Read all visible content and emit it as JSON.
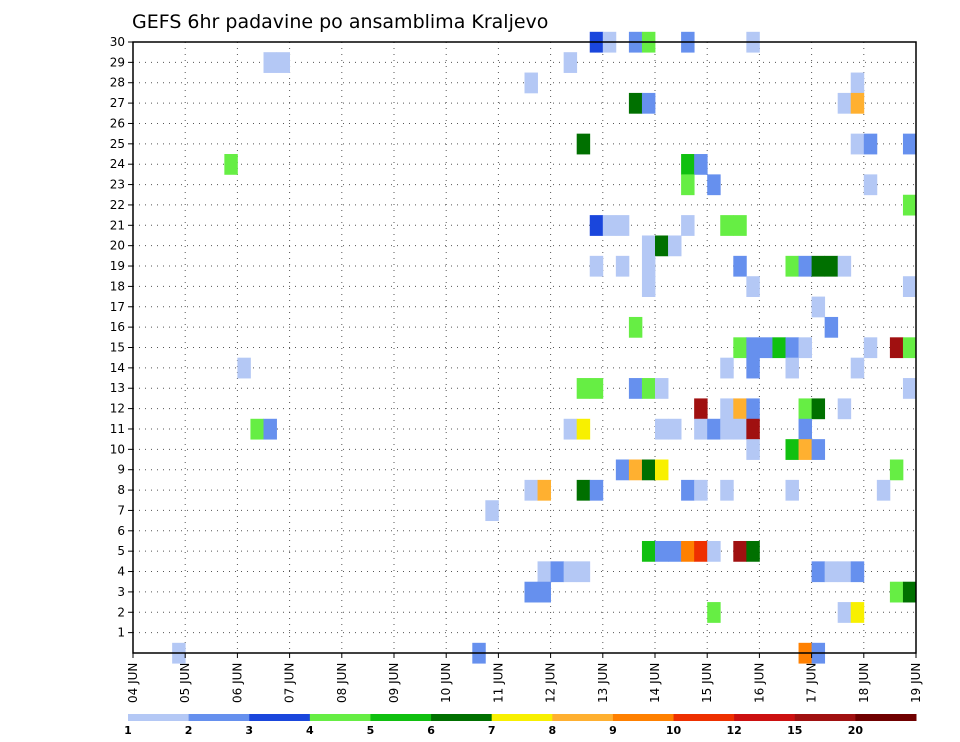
{
  "chart_data": {
    "type": "heatmap",
    "title": "GEFS 6hr padavine po ansamblima Kraljevo",
    "xlabel": "",
    "ylabel": "",
    "x_axis": {
      "kind": "date",
      "ticks": [
        "04 JUN",
        "05 JUN",
        "06 JUN",
        "07 JUN",
        "08 JUN",
        "09 JUN",
        "10 JUN",
        "11 JUN",
        "12 JUN",
        "13 JUN",
        "14 JUN",
        "15 JUN",
        "16 JUN",
        "17 JUN",
        "18 JUN",
        "19 JUN"
      ],
      "range": [
        "04 JUN",
        "19 JUN"
      ],
      "step_hours": 6
    },
    "y_axis": {
      "label": "",
      "ticks": [
        1,
        2,
        3,
        4,
        5,
        6,
        7,
        8,
        9,
        10,
        11,
        12,
        13,
        14,
        15,
        16,
        17,
        18,
        19,
        20,
        21,
        22,
        23,
        24,
        25,
        26,
        27,
        28,
        29,
        30
      ],
      "range": [
        0,
        30
      ]
    },
    "grid": true,
    "legend": {
      "placement": "bottom",
      "labels": [
        "1",
        "2",
        "3",
        "4",
        "5",
        "6",
        "7",
        "8",
        "9",
        "10",
        "12",
        "15",
        "20"
      ],
      "colors": [
        "#b4c8f5",
        "#6690ee",
        "#1a46dc",
        "#66ee44",
        "#10c010",
        "#007000",
        "#f8f000",
        "#ffb030",
        "#ff8000",
        "#ee3000",
        "#cc1010",
        "#a01010",
        "#700000"
      ]
    },
    "cells": [
      {
        "member": 30,
        "time": "12 JUN 18",
        "value": 3
      },
      {
        "member": 30,
        "time": "13 JUN 00",
        "value": 1
      },
      {
        "member": 30,
        "time": "13 JUN 12",
        "value": 2
      },
      {
        "member": 30,
        "time": "13 JUN 18",
        "value": 4
      },
      {
        "member": 30,
        "time": "14 JUN 12",
        "value": 2
      },
      {
        "member": 30,
        "time": "15 JUN 18",
        "value": 1
      },
      {
        "member": 29,
        "time": "06 JUN 12",
        "value": 1
      },
      {
        "member": 29,
        "time": "06 JUN 18",
        "value": 1
      },
      {
        "member": 29,
        "time": "12 JUN 06",
        "value": 1
      },
      {
        "member": 28,
        "time": "11 JUN 12",
        "value": 1
      },
      {
        "member": 28,
        "time": "17 JUN 18",
        "value": 1
      },
      {
        "member": 27,
        "time": "13 JUN 12",
        "value": 6
      },
      {
        "member": 27,
        "time": "13 JUN 18",
        "value": 2
      },
      {
        "member": 27,
        "time": "17 JUN 12",
        "value": 1
      },
      {
        "member": 27,
        "time": "17 JUN 18",
        "value": 8
      },
      {
        "member": 25,
        "time": "12 JUN 12",
        "value": 6
      },
      {
        "member": 25,
        "time": "17 JUN 18",
        "value": 1
      },
      {
        "member": 25,
        "time": "18 JUN 00",
        "value": 2
      },
      {
        "member": 25,
        "time": "18 JUN 18",
        "value": 2
      },
      {
        "member": 24,
        "time": "05 JUN 18",
        "value": 4
      },
      {
        "member": 24,
        "time": "14 JUN 12",
        "value": 5
      },
      {
        "member": 24,
        "time": "14 JUN 18",
        "value": 2
      },
      {
        "member": 23,
        "time": "14 JUN 12",
        "value": 4
      },
      {
        "member": 23,
        "time": "15 JUN 00",
        "value": 2
      },
      {
        "member": 23,
        "time": "18 JUN 00",
        "value": 1
      },
      {
        "member": 22,
        "time": "18 JUN 18",
        "value": 4
      },
      {
        "member": 21,
        "time": "12 JUN 18",
        "value": 3
      },
      {
        "member": 21,
        "time": "13 JUN 00",
        "value": 1
      },
      {
        "member": 21,
        "time": "13 JUN 06",
        "value": 1
      },
      {
        "member": 21,
        "time": "14 JUN 12",
        "value": 1
      },
      {
        "member": 21,
        "time": "15 JUN 06",
        "value": 4
      },
      {
        "member": 21,
        "time": "15 JUN 12",
        "value": 4
      },
      {
        "member": 20,
        "time": "13 JUN 18",
        "value": 1
      },
      {
        "member": 20,
        "time": "14 JUN 00",
        "value": 6
      },
      {
        "member": 20,
        "time": "14 JUN 06",
        "value": 1
      },
      {
        "member": 19,
        "time": "12 JUN 18",
        "value": 1
      },
      {
        "member": 19,
        "time": "13 JUN 06",
        "value": 1
      },
      {
        "member": 19,
        "time": "13 JUN 18",
        "value": 1
      },
      {
        "member": 19,
        "time": "15 JUN 12",
        "value": 2
      },
      {
        "member": 19,
        "time": "16 JUN 12",
        "value": 4
      },
      {
        "member": 19,
        "time": "16 JUN 18",
        "value": 2
      },
      {
        "member": 19,
        "time": "17 JUN 00",
        "value": 6
      },
      {
        "member": 19,
        "time": "17 JUN 06",
        "value": 6
      },
      {
        "member": 19,
        "time": "17 JUN 12",
        "value": 1
      },
      {
        "member": 18,
        "time": "13 JUN 18",
        "value": 1
      },
      {
        "member": 18,
        "time": "15 JUN 18",
        "value": 1
      },
      {
        "member": 18,
        "time": "18 JUN 18",
        "value": 1
      },
      {
        "member": 17,
        "time": "17 JUN 00",
        "value": 1
      },
      {
        "member": 16,
        "time": "13 JUN 12",
        "value": 4
      },
      {
        "member": 16,
        "time": "17 JUN 06",
        "value": 2
      },
      {
        "member": 15,
        "time": "15 JUN 12",
        "value": 4
      },
      {
        "member": 15,
        "time": "15 JUN 18",
        "value": 2
      },
      {
        "member": 15,
        "time": "16 JUN 00",
        "value": 2
      },
      {
        "member": 15,
        "time": "16 JUN 06",
        "value": 5
      },
      {
        "member": 15,
        "time": "16 JUN 12",
        "value": 2
      },
      {
        "member": 15,
        "time": "16 JUN 18",
        "value": 1
      },
      {
        "member": 15,
        "time": "18 JUN 00",
        "value": 1
      },
      {
        "member": 15,
        "time": "18 JUN 12",
        "value": 15
      },
      {
        "member": 15,
        "time": "18 JUN 18",
        "value": 4
      },
      {
        "member": 14,
        "time": "06 JUN 00",
        "value": 1
      },
      {
        "member": 14,
        "time": "15 JUN 06",
        "value": 1
      },
      {
        "member": 14,
        "time": "15 JUN 18",
        "value": 2
      },
      {
        "member": 14,
        "time": "16 JUN 12",
        "value": 1
      },
      {
        "member": 14,
        "time": "17 JUN 18",
        "value": 1
      },
      {
        "member": 13,
        "time": "12 JUN 12",
        "value": 4
      },
      {
        "member": 13,
        "time": "12 JUN 18",
        "value": 4
      },
      {
        "member": 13,
        "time": "13 JUN 12",
        "value": 2
      },
      {
        "member": 13,
        "time": "13 JUN 18",
        "value": 4
      },
      {
        "member": 13,
        "time": "14 JUN 00",
        "value": 1
      },
      {
        "member": 13,
        "time": "18 JUN 18",
        "value": 1
      },
      {
        "member": 12,
        "time": "14 JUN 18",
        "value": 15
      },
      {
        "member": 12,
        "time": "15 JUN 06",
        "value": 1
      },
      {
        "member": 12,
        "time": "15 JUN 12",
        "value": 8
      },
      {
        "member": 12,
        "time": "15 JUN 18",
        "value": 2
      },
      {
        "member": 12,
        "time": "16 JUN 18",
        "value": 4
      },
      {
        "member": 12,
        "time": "17 JUN 00",
        "value": 6
      },
      {
        "member": 12,
        "time": "17 JUN 12",
        "value": 1
      },
      {
        "member": 11,
        "time": "06 JUN 06",
        "value": 4
      },
      {
        "member": 11,
        "time": "06 JUN 12",
        "value": 2
      },
      {
        "member": 11,
        "time": "12 JUN 06",
        "value": 1
      },
      {
        "member": 11,
        "time": "12 JUN 12",
        "value": 7
      },
      {
        "member": 11,
        "time": "14 JUN 00",
        "value": 1
      },
      {
        "member": 11,
        "time": "14 JUN 06",
        "value": 1
      },
      {
        "member": 11,
        "time": "14 JUN 18",
        "value": 1
      },
      {
        "member": 11,
        "time": "15 JUN 00",
        "value": 2
      },
      {
        "member": 11,
        "time": "15 JUN 06",
        "value": 1
      },
      {
        "member": 11,
        "time": "15 JUN 12",
        "value": 1
      },
      {
        "member": 11,
        "time": "15 JUN 18",
        "value": 15
      },
      {
        "member": 11,
        "time": "16 JUN 18",
        "value": 2
      },
      {
        "member": 10,
        "time": "15 JUN 18",
        "value": 1
      },
      {
        "member": 10,
        "time": "16 JUN 12",
        "value": 5
      },
      {
        "member": 10,
        "time": "16 JUN 18",
        "value": 8
      },
      {
        "member": 10,
        "time": "17 JUN 00",
        "value": 2
      },
      {
        "member": 9,
        "time": "13 JUN 06",
        "value": 2
      },
      {
        "member": 9,
        "time": "13 JUN 12",
        "value": 8
      },
      {
        "member": 9,
        "time": "13 JUN 18",
        "value": 6
      },
      {
        "member": 9,
        "time": "14 JUN 00",
        "value": 7
      },
      {
        "member": 9,
        "time": "18 JUN 12",
        "value": 4
      },
      {
        "member": 8,
        "time": "11 JUN 12",
        "value": 1
      },
      {
        "member": 8,
        "time": "11 JUN 18",
        "value": 8
      },
      {
        "member": 8,
        "time": "12 JUN 12",
        "value": 6
      },
      {
        "member": 8,
        "time": "12 JUN 18",
        "value": 2
      },
      {
        "member": 8,
        "time": "14 JUN 12",
        "value": 2
      },
      {
        "member": 8,
        "time": "14 JUN 18",
        "value": 1
      },
      {
        "member": 8,
        "time": "15 JUN 06",
        "value": 1
      },
      {
        "member": 8,
        "time": "16 JUN 12",
        "value": 1
      },
      {
        "member": 8,
        "time": "18 JUN 06",
        "value": 1
      },
      {
        "member": 7,
        "time": "10 JUN 18",
        "value": 1
      },
      {
        "member": 5,
        "time": "13 JUN 18",
        "value": 5
      },
      {
        "member": 5,
        "time": "14 JUN 00",
        "value": 2
      },
      {
        "member": 5,
        "time": "14 JUN 06",
        "value": 2
      },
      {
        "member": 5,
        "time": "14 JUN 12",
        "value": 9
      },
      {
        "member": 5,
        "time": "14 JUN 18",
        "value": 10
      },
      {
        "member": 5,
        "time": "15 JUN 00",
        "value": 1
      },
      {
        "member": 5,
        "time": "15 JUN 12",
        "value": 15
      },
      {
        "member": 5,
        "time": "15 JUN 18",
        "value": 6
      },
      {
        "member": 4,
        "time": "11 JUN 18",
        "value": 1
      },
      {
        "member": 4,
        "time": "12 JUN 00",
        "value": 2
      },
      {
        "member": 4,
        "time": "12 JUN 06",
        "value": 1
      },
      {
        "member": 4,
        "time": "12 JUN 12",
        "value": 1
      },
      {
        "member": 4,
        "time": "17 JUN 00",
        "value": 2
      },
      {
        "member": 4,
        "time": "17 JUN 06",
        "value": 1
      },
      {
        "member": 4,
        "time": "17 JUN 12",
        "value": 1
      },
      {
        "member": 4,
        "time": "17 JUN 18",
        "value": 2
      },
      {
        "member": 3,
        "time": "11 JUN 12",
        "value": 2
      },
      {
        "member": 3,
        "time": "11 JUN 18",
        "value": 2
      },
      {
        "member": 3,
        "time": "18 JUN 12",
        "value": 4
      },
      {
        "member": 3,
        "time": "18 JUN 18",
        "value": 6
      },
      {
        "member": 2,
        "time": "15 JUN 00",
        "value": 4
      },
      {
        "member": 2,
        "time": "17 JUN 12",
        "value": 1
      },
      {
        "member": 2,
        "time": "17 JUN 18",
        "value": 7
      },
      {
        "member": 0,
        "time": "04 JUN 18",
        "value": 1
      },
      {
        "member": 0,
        "time": "10 JUN 12",
        "value": 2
      },
      {
        "member": 0,
        "time": "16 JUN 18",
        "value": 9
      },
      {
        "member": 0,
        "time": "17 JUN 00",
        "value": 2
      }
    ]
  }
}
